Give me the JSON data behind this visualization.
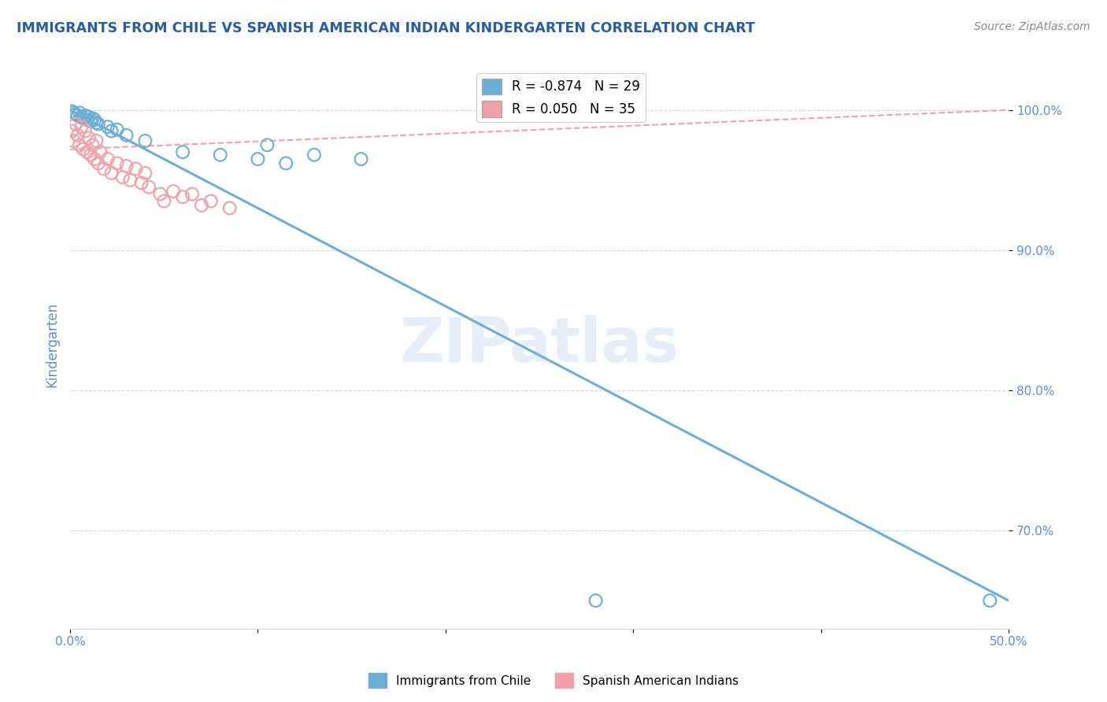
{
  "title": "IMMIGRANTS FROM CHILE VS SPANISH AMERICAN INDIAN KINDERGARTEN CORRELATION CHART",
  "source": "Source: ZipAtlas.com",
  "ylabel": "Kindergarten",
  "xlim": [
    0.0,
    0.5
  ],
  "ylim": [
    63.0,
    103.5
  ],
  "R_blue": -0.874,
  "N_blue": 29,
  "R_pink": 0.05,
  "N_pink": 35,
  "blue_color": "#6baed6",
  "pink_color": "#f4a0a8",
  "blue_scatter": [
    [
      0.001,
      99.9
    ],
    [
      0.002,
      99.8
    ],
    [
      0.003,
      99.7
    ],
    [
      0.004,
      99.6
    ],
    [
      0.005,
      99.8
    ],
    [
      0.006,
      99.5
    ],
    [
      0.007,
      99.4
    ],
    [
      0.008,
      99.6
    ],
    [
      0.009,
      99.3
    ],
    [
      0.01,
      99.5
    ],
    [
      0.011,
      99.2
    ],
    [
      0.012,
      99.4
    ],
    [
      0.013,
      99.3
    ],
    [
      0.014,
      99.1
    ],
    [
      0.015,
      99.0
    ],
    [
      0.02,
      98.8
    ],
    [
      0.022,
      98.5
    ],
    [
      0.025,
      98.6
    ],
    [
      0.03,
      98.2
    ],
    [
      0.04,
      97.8
    ],
    [
      0.06,
      97.0
    ],
    [
      0.08,
      96.8
    ],
    [
      0.1,
      96.5
    ],
    [
      0.105,
      97.5
    ],
    [
      0.115,
      96.2
    ],
    [
      0.13,
      96.8
    ],
    [
      0.155,
      96.5
    ],
    [
      0.28,
      65.0
    ],
    [
      0.49,
      65.0
    ]
  ],
  "pink_scatter": [
    [
      0.001,
      98.5
    ],
    [
      0.002,
      97.8
    ],
    [
      0.003,
      99.0
    ],
    [
      0.004,
      98.2
    ],
    [
      0.005,
      97.5
    ],
    [
      0.006,
      98.8
    ],
    [
      0.007,
      97.2
    ],
    [
      0.008,
      98.5
    ],
    [
      0.009,
      97.0
    ],
    [
      0.01,
      98.0
    ],
    [
      0.011,
      96.8
    ],
    [
      0.012,
      97.5
    ],
    [
      0.013,
      96.5
    ],
    [
      0.014,
      97.8
    ],
    [
      0.015,
      96.2
    ],
    [
      0.016,
      97.0
    ],
    [
      0.018,
      95.8
    ],
    [
      0.02,
      96.5
    ],
    [
      0.022,
      95.5
    ],
    [
      0.025,
      96.2
    ],
    [
      0.028,
      95.2
    ],
    [
      0.03,
      96.0
    ],
    [
      0.032,
      95.0
    ],
    [
      0.035,
      95.8
    ],
    [
      0.038,
      94.8
    ],
    [
      0.04,
      95.5
    ],
    [
      0.042,
      94.5
    ],
    [
      0.048,
      94.0
    ],
    [
      0.05,
      93.5
    ],
    [
      0.055,
      94.2
    ],
    [
      0.06,
      93.8
    ],
    [
      0.065,
      94.0
    ],
    [
      0.07,
      93.2
    ],
    [
      0.075,
      93.5
    ],
    [
      0.085,
      93.0
    ]
  ],
  "blue_trendline": [
    [
      0.0,
      100.0
    ],
    [
      0.5,
      65.0
    ]
  ],
  "pink_trendline": [
    [
      0.0,
      97.2
    ],
    [
      0.5,
      100.0
    ]
  ],
  "legend_label_blue": "Immigrants from Chile",
  "legend_label_pink": "Spanish American Indians",
  "watermark": "ZIPatlas",
  "title_color": "#2a5ba8",
  "tick_color": "#5a8fd0",
  "grid_color": "#c8d8ed",
  "background_color": "#ffffff"
}
